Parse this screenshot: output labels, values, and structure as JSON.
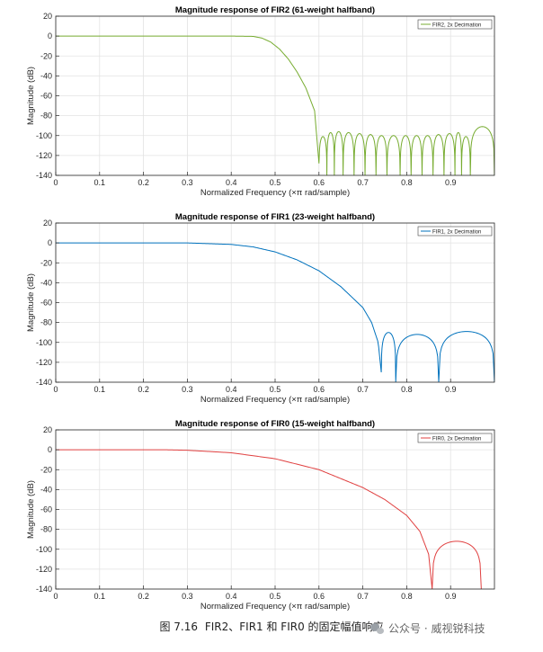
{
  "chart_data": [
    {
      "type": "line",
      "title": "Magnitude response of FIR2 (61-weight halfband)",
      "xlabel": "Normalized Frequency (×π rad/sample)",
      "ylabel": "Magnitude (dB)",
      "xlim": [
        0,
        1
      ],
      "ylim": [
        -140,
        20
      ],
      "xticks": [
        "0",
        "0.1",
        "0.2",
        "0.3",
        "0.4",
        "0.5",
        "0.6",
        "0.7",
        "0.8",
        "0.9"
      ],
      "yticks": [
        "20",
        "0",
        "-20",
        "-40",
        "-60",
        "-80",
        "-100",
        "-120",
        "-140"
      ],
      "grid": true,
      "legend_position": "top-right",
      "color": "#77ac30",
      "series": [
        {
          "name": "FIR2, 2x Decimation",
          "passband_edge": 0.43,
          "stopband_start": 0.6,
          "points": [
            [
              0,
              0
            ],
            [
              0.4,
              0
            ],
            [
              0.45,
              -0.3
            ],
            [
              0.47,
              -2
            ],
            [
              0.49,
              -6
            ],
            [
              0.51,
              -13
            ],
            [
              0.53,
              -23
            ],
            [
              0.55,
              -36
            ],
            [
              0.57,
              -52
            ],
            [
              0.59,
              -75
            ],
            [
              0.6,
              -128
            ]
          ],
          "stopband_notches": [
            0.6,
            0.618,
            0.635,
            0.655,
            0.68,
            0.705,
            0.73,
            0.755,
            0.785,
            0.81,
            0.835,
            0.86,
            0.885,
            0.91,
            0.925,
            0.945,
            1.0
          ],
          "stopband_peaks_db": [
            -101,
            -97,
            -96,
            -97,
            -98,
            -99,
            -100,
            -100,
            -100,
            -100,
            -100,
            -99,
            -98,
            -97,
            -101,
            -91
          ]
        }
      ]
    },
    {
      "type": "line",
      "title": "Magnitude response of FIR1 (23-weight halfband)",
      "xlabel": "Normalized Frequency (×π rad/sample)",
      "ylabel": "Magnitude (dB)",
      "xlim": [
        0,
        1
      ],
      "ylim": [
        -140,
        20
      ],
      "xticks": [
        "0",
        "0.1",
        "0.2",
        "0.3",
        "0.4",
        "0.5",
        "0.6",
        "0.7",
        "0.8",
        "0.9"
      ],
      "yticks": [
        "20",
        "0",
        "-20",
        "-40",
        "-60",
        "-80",
        "-100",
        "-120",
        "-140"
      ],
      "grid": true,
      "legend_position": "top-right",
      "color": "#0072bd",
      "series": [
        {
          "name": "FIR1, 2x Decimation",
          "points": [
            [
              0,
              0
            ],
            [
              0.3,
              0
            ],
            [
              0.4,
              -1.5
            ],
            [
              0.45,
              -4
            ],
            [
              0.5,
              -9
            ],
            [
              0.55,
              -17
            ],
            [
              0.6,
              -28
            ],
            [
              0.65,
              -44
            ],
            [
              0.7,
              -65
            ],
            [
              0.72,
              -80
            ],
            [
              0.735,
              -100
            ],
            [
              0.742,
              -130
            ]
          ],
          "stopband_notches": [
            0.742,
            0.775,
            0.873,
            1.0
          ],
          "stopband_peaks_db": [
            -90,
            -92,
            -89
          ]
        }
      ]
    },
    {
      "type": "line",
      "title": "Magnitude response of FIR0 (15-weight halfband)",
      "xlabel": "Normalized Frequency (×π rad/sample)",
      "ylabel": "Magnitude (dB)",
      "xlim": [
        0,
        1
      ],
      "ylim": [
        -140,
        20
      ],
      "xticks": [
        "0",
        "0.1",
        "0.2",
        "0.3",
        "0.4",
        "0.5",
        "0.6",
        "0.7",
        "0.8",
        "0.9"
      ],
      "yticks": [
        "20",
        "0",
        "-20",
        "-40",
        "-60",
        "-80",
        "-100",
        "-120",
        "-140"
      ],
      "grid": true,
      "legend_position": "top-right",
      "color": "#e04040",
      "series": [
        {
          "name": "FIR0, 2x Decimation",
          "points": [
            [
              0,
              0
            ],
            [
              0.25,
              0
            ],
            [
              0.3,
              -0.5
            ],
            [
              0.4,
              -3
            ],
            [
              0.5,
              -9
            ],
            [
              0.6,
              -20
            ],
            [
              0.7,
              -38
            ],
            [
              0.75,
              -50
            ],
            [
              0.8,
              -66
            ],
            [
              0.83,
              -82
            ],
            [
              0.85,
              -105
            ],
            [
              0.858,
              -140
            ]
          ],
          "stopband_notches": [
            0.858,
            0.97
          ],
          "stopband_peaks_db": [
            -92
          ]
        }
      ]
    }
  ],
  "caption": {
    "figure_label": "图 7.16",
    "text": "FIR2、FIR1 和 FIR0 的固定幅值响应"
  },
  "watermark": {
    "text": "公众号 · 威视锐科技",
    "icon": "wechat-icon"
  }
}
